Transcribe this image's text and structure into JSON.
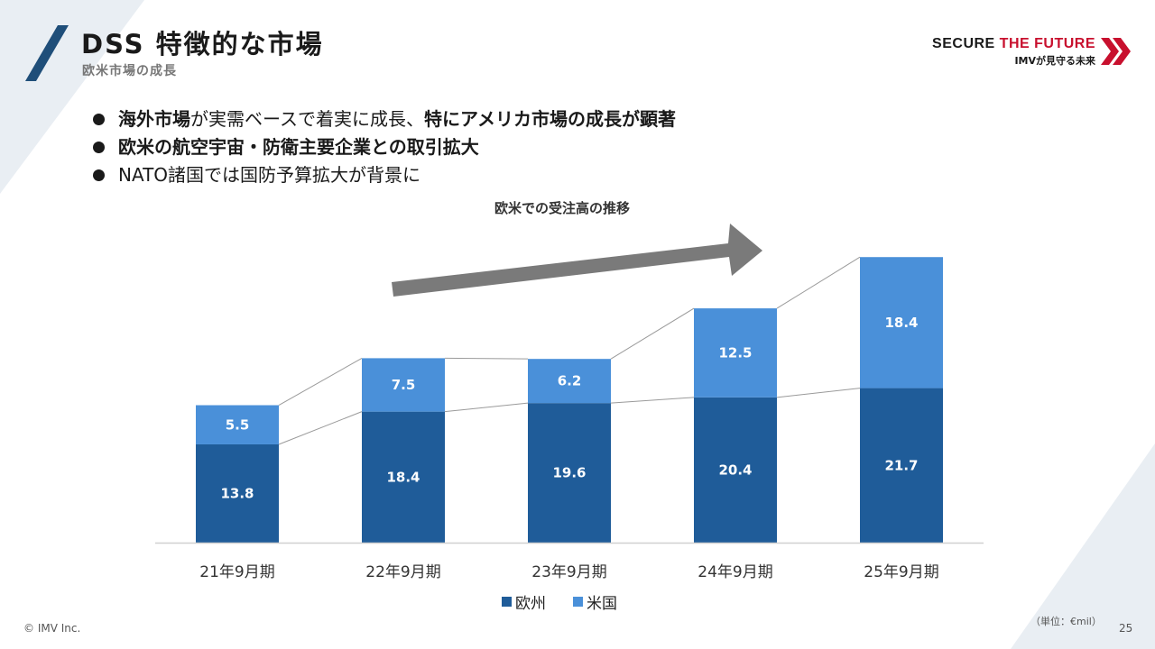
{
  "header": {
    "title": "DSS 特徴的な市場",
    "subtitle": "欧米市場の成長"
  },
  "logo": {
    "main_prefix": "SECURE ",
    "main_accent": "THE FUTURE",
    "sub": "IMVが見守る未来",
    "accent_color": "#c8102e"
  },
  "bullets": [
    {
      "bold_a": "海外市場",
      "normal_a": "が実需ベースで着実に成長、",
      "bold_b": "特にアメリカ市場の成長が顕著",
      "normal_b": ""
    },
    {
      "bold_a": "欧米の航空宇宙・防衛主要企業との取引拡大",
      "normal_a": "",
      "bold_b": "",
      "normal_b": ""
    },
    {
      "bold_a": "",
      "normal_a": "NATO諸国では国防予算拡大が背景に",
      "bold_b": "",
      "normal_b": ""
    }
  ],
  "chart_title": "欧米での受注高の推移",
  "chart_data": {
    "type": "bar",
    "stacked": true,
    "categories": [
      "21年9月期",
      "22年9月期",
      "23年9月期",
      "24年9月期",
      "25年9月期"
    ],
    "series": [
      {
        "name": "欧州",
        "values": [
          13.8,
          18.4,
          19.6,
          20.4,
          21.7
        ],
        "color": "#1f5c99"
      },
      {
        "name": "米国",
        "values": [
          5.5,
          7.5,
          6.2,
          12.5,
          18.4
        ],
        "color": "#4a90d9"
      }
    ],
    "ylim": [
      0,
      40
    ],
    "legend": "bottom",
    "grid": false,
    "series_lines": true,
    "trend_arrow": true
  },
  "footer": {
    "unit": "（単位：€mil）",
    "copyright": "© IMV Inc.",
    "page": "25"
  }
}
